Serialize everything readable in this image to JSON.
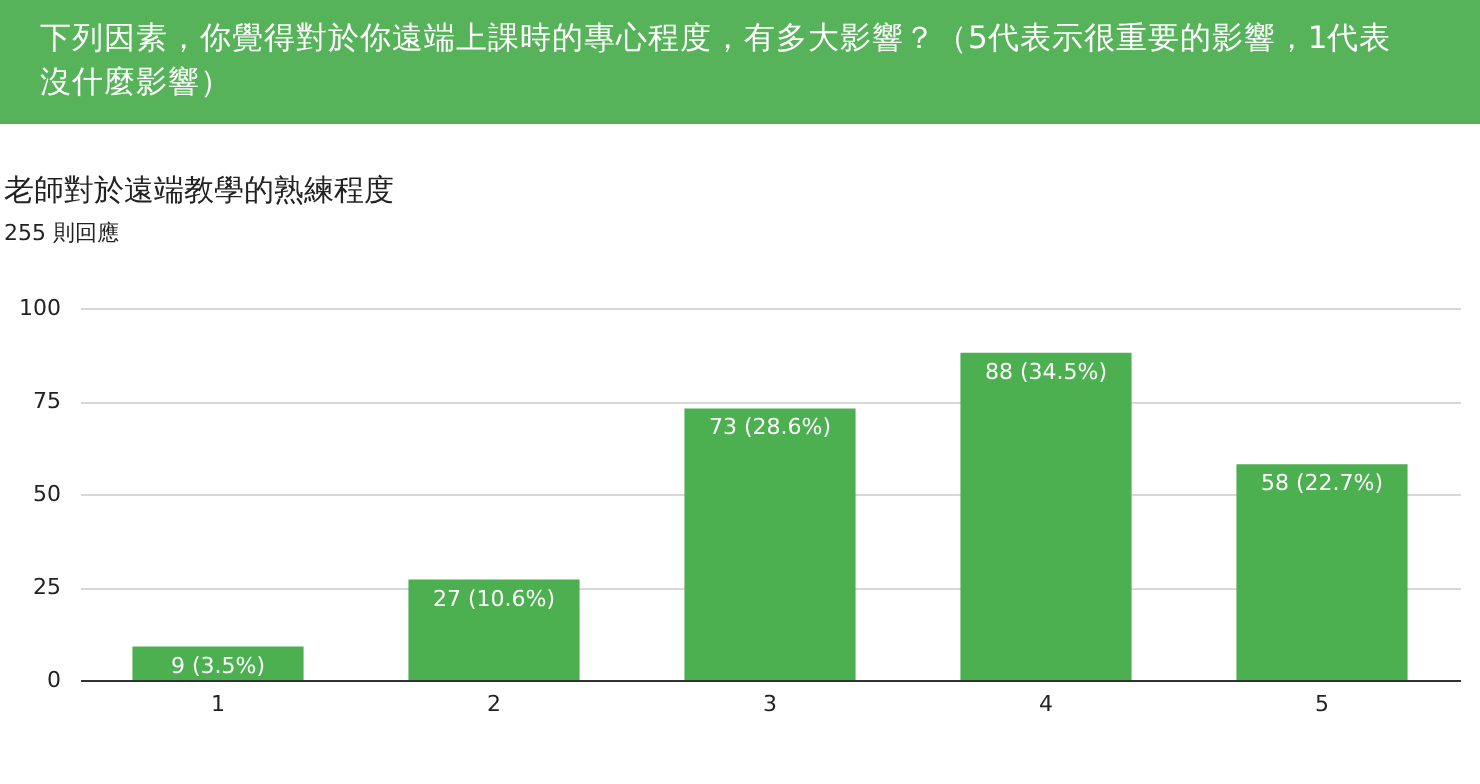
{
  "chart_data": {
    "type": "bar",
    "title": "下列因素，你覺得對於你遠端上課時的專心程度，有多大影響？（5代表示很重要的影響，1代表沒什麼影響）",
    "subtitle": "老師對於遠端教學的熟練程度",
    "annotations": [
      "255 則回應"
    ],
    "categories": [
      "1",
      "2",
      "3",
      "4",
      "5"
    ],
    "series": [
      {
        "color": "#4caf50",
        "values": [
          9,
          27,
          73,
          88,
          58
        ]
      }
    ],
    "value_labels": [
      "9 (3.5%)",
      "27 (10.6%)",
      "73 (28.6%)",
      "88 (34.5%)",
      "58 (22.7%)"
    ],
    "ylim": [
      0,
      100
    ],
    "yticks": [
      0,
      25,
      50,
      75,
      100
    ],
    "grid": "y"
  }
}
